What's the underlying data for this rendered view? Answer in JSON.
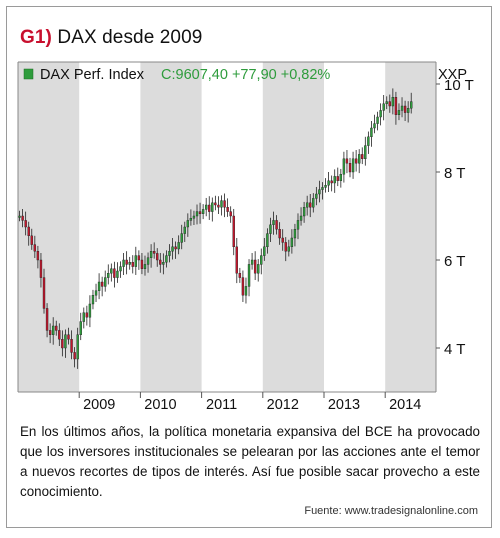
{
  "header": {
    "tag": "G1)",
    "title": "DAX desde 2009"
  },
  "chart_data": {
    "type": "candlestick",
    "legend": {
      "label": "DAX Perf. Index",
      "quote": "C:9607,40 +77,90 +0,82%",
      "symbol": "XXP"
    },
    "x_ticks": [
      "2009",
      "2010",
      "2011",
      "2012",
      "2013",
      "2014"
    ],
    "y_ticks": [
      "4 T",
      "6 T",
      "8 T",
      "10 T"
    ],
    "ylim": [
      3000,
      10500
    ],
    "x_range": [
      2008.0,
      2014.83
    ],
    "shaded_years": [
      [
        2008,
        2009
      ],
      [
        2010,
        2011
      ],
      [
        2012,
        2013
      ],
      [
        2014,
        2014.83
      ]
    ],
    "series": [
      [
        2008.0,
        7000
      ],
      [
        2008.05,
        6900
      ],
      [
        2008.1,
        6750
      ],
      [
        2008.15,
        6550
      ],
      [
        2008.2,
        6350
      ],
      [
        2008.25,
        6200
      ],
      [
        2008.3,
        6000
      ],
      [
        2008.35,
        5600
      ],
      [
        2008.4,
        4900
      ],
      [
        2008.45,
        4400
      ],
      [
        2008.5,
        4300
      ],
      [
        2008.55,
        4500
      ],
      [
        2008.6,
        4400
      ],
      [
        2008.65,
        4200
      ],
      [
        2008.7,
        4000
      ],
      [
        2008.75,
        4300
      ],
      [
        2008.8,
        4200
      ],
      [
        2008.85,
        3900
      ],
      [
        2008.9,
        3750
      ],
      [
        2008.95,
        4300
      ],
      [
        2009.0,
        4600
      ],
      [
        2009.05,
        4800
      ],
      [
        2009.1,
        4700
      ],
      [
        2009.15,
        5000
      ],
      [
        2009.2,
        5200
      ],
      [
        2009.25,
        5300
      ],
      [
        2009.3,
        5500
      ],
      [
        2009.35,
        5400
      ],
      [
        2009.4,
        5600
      ],
      [
        2009.45,
        5700
      ],
      [
        2009.5,
        5800
      ],
      [
        2009.55,
        5600
      ],
      [
        2009.6,
        5750
      ],
      [
        2009.65,
        5850
      ],
      [
        2009.7,
        6000
      ],
      [
        2009.75,
        5900
      ],
      [
        2009.8,
        5950
      ],
      [
        2009.85,
        5850
      ],
      [
        2009.9,
        6100
      ],
      [
        2009.95,
        6000
      ],
      [
        2010.0,
        5800
      ],
      [
        2010.05,
        5900
      ],
      [
        2010.1,
        6050
      ],
      [
        2010.15,
        6200
      ],
      [
        2010.2,
        6150
      ],
      [
        2010.25,
        6000
      ],
      [
        2010.3,
        5900
      ],
      [
        2010.35,
        5950
      ],
      [
        2010.4,
        6100
      ],
      [
        2010.45,
        6200
      ],
      [
        2010.5,
        6300
      ],
      [
        2010.55,
        6250
      ],
      [
        2010.6,
        6400
      ],
      [
        2010.65,
        6600
      ],
      [
        2010.7,
        6750
      ],
      [
        2010.75,
        6900
      ],
      [
        2010.8,
        6950
      ],
      [
        2010.85,
        7000
      ],
      [
        2010.9,
        7100
      ],
      [
        2010.95,
        7050
      ],
      [
        2011.0,
        7150
      ],
      [
        2011.05,
        7250
      ],
      [
        2011.1,
        7100
      ],
      [
        2011.15,
        7300
      ],
      [
        2011.2,
        7250
      ],
      [
        2011.25,
        7200
      ],
      [
        2011.3,
        7350
      ],
      [
        2011.35,
        7200
      ],
      [
        2011.4,
        7100
      ],
      [
        2011.45,
        7000
      ],
      [
        2011.5,
        6300
      ],
      [
        2011.55,
        5700
      ],
      [
        2011.6,
        5600
      ],
      [
        2011.65,
        5200
      ],
      [
        2011.7,
        5400
      ],
      [
        2011.75,
        5900
      ],
      [
        2011.8,
        6000
      ],
      [
        2011.85,
        5700
      ],
      [
        2011.9,
        5900
      ],
      [
        2011.95,
        6100
      ],
      [
        2012.0,
        6300
      ],
      [
        2012.05,
        6600
      ],
      [
        2012.1,
        6800
      ],
      [
        2012.15,
        6900
      ],
      [
        2012.2,
        6700
      ],
      [
        2012.25,
        6500
      ],
      [
        2012.3,
        6400
      ],
      [
        2012.35,
        6200
      ],
      [
        2012.4,
        6300
      ],
      [
        2012.45,
        6500
      ],
      [
        2012.5,
        6700
      ],
      [
        2012.55,
        6900
      ],
      [
        2012.6,
        7000
      ],
      [
        2012.65,
        7200
      ],
      [
        2012.7,
        7300
      ],
      [
        2012.75,
        7200
      ],
      [
        2012.8,
        7400
      ],
      [
        2012.85,
        7500
      ],
      [
        2012.9,
        7600
      ],
      [
        2012.95,
        7650
      ],
      [
        2013.0,
        7700
      ],
      [
        2013.05,
        7800
      ],
      [
        2013.1,
        7750
      ],
      [
        2013.15,
        7900
      ],
      [
        2013.2,
        7800
      ],
      [
        2013.25,
        7950
      ],
      [
        2013.3,
        8300
      ],
      [
        2013.35,
        8200
      ],
      [
        2013.4,
        8000
      ],
      [
        2013.45,
        8300
      ],
      [
        2013.5,
        8200
      ],
      [
        2013.55,
        8400
      ],
      [
        2013.6,
        8300
      ],
      [
        2013.65,
        8600
      ],
      [
        2013.7,
        8800
      ],
      [
        2013.75,
        9000
      ],
      [
        2013.8,
        9100
      ],
      [
        2013.85,
        9250
      ],
      [
        2013.9,
        9400
      ],
      [
        2013.95,
        9550
      ],
      [
        2014.0,
        9600
      ],
      [
        2014.05,
        9500
      ],
      [
        2014.1,
        9700
      ],
      [
        2014.15,
        9300
      ],
      [
        2014.2,
        9400
      ],
      [
        2014.25,
        9500
      ],
      [
        2014.3,
        9350
      ],
      [
        2014.35,
        9450
      ],
      [
        2014.4,
        9600
      ]
    ]
  },
  "description": "En los últimos años, la política monetaria expansiva del BCE ha provocado que los inversores institucionales se pelearan por las acciones ante el temor a nuevos recortes de tipos de interés. Así fue posible sacar provecho a este conocimiento.",
  "source": "Fuente: www.tradesignalonline.com",
  "colors": {
    "up": "#2e9c3c",
    "down": "#c0162c",
    "shade": "#dcdcdc",
    "accent": "#c8102e",
    "quote": "#2e9c3c"
  }
}
